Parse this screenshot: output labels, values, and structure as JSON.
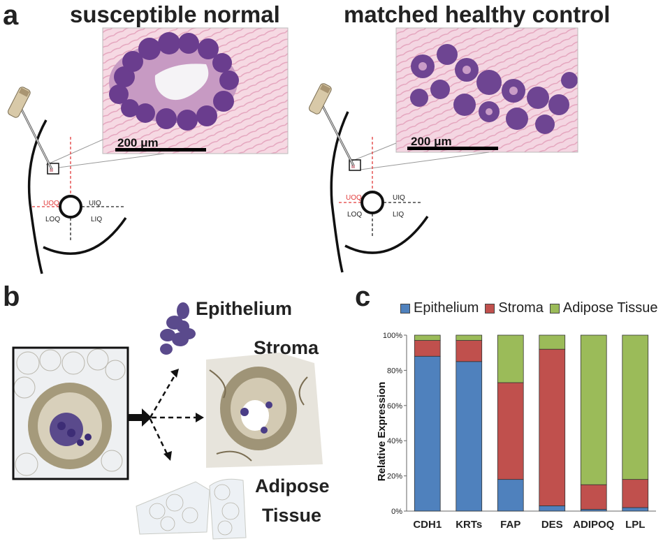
{
  "panel_a": {
    "letter": "a",
    "left_title": "susceptible normal",
    "right_title": "matched healthy control",
    "scale_label": "200 μm",
    "quadrants": {
      "uoq": "UOQ",
      "uiq": "UIQ",
      "loq": "LOQ",
      "liq": "LIQ"
    }
  },
  "panel_b": {
    "letter": "b",
    "epithelium": "Epithelium",
    "stroma": "Stroma",
    "adipose_line1": "Adipose",
    "adipose_line2": "Tissue"
  },
  "panel_c": {
    "letter": "c"
  },
  "colors": {
    "epithelium": "#4f81bd",
    "stroma": "#c0504d",
    "adipose": "#9bbb59"
  },
  "chart_data": {
    "type": "bar",
    "stacked": true,
    "categories": [
      "CDH1",
      "KRTs",
      "FAP",
      "DES",
      "ADIPOQ",
      "LPL"
    ],
    "series": [
      {
        "name": "Epithelium",
        "values": [
          88,
          85,
          18,
          3,
          1,
          2
        ]
      },
      {
        "name": "Stroma",
        "values": [
          9,
          12,
          55,
          89,
          14,
          16
        ]
      },
      {
        "name": "Adipose Tissue",
        "values": [
          3,
          3,
          27,
          8,
          85,
          82
        ]
      }
    ],
    "ylabel": "Relative Expression",
    "ylim": [
      0,
      100
    ],
    "yticks": [
      "0%",
      "20%",
      "40%",
      "60%",
      "80%",
      "100%"
    ],
    "legend_position": "top"
  }
}
